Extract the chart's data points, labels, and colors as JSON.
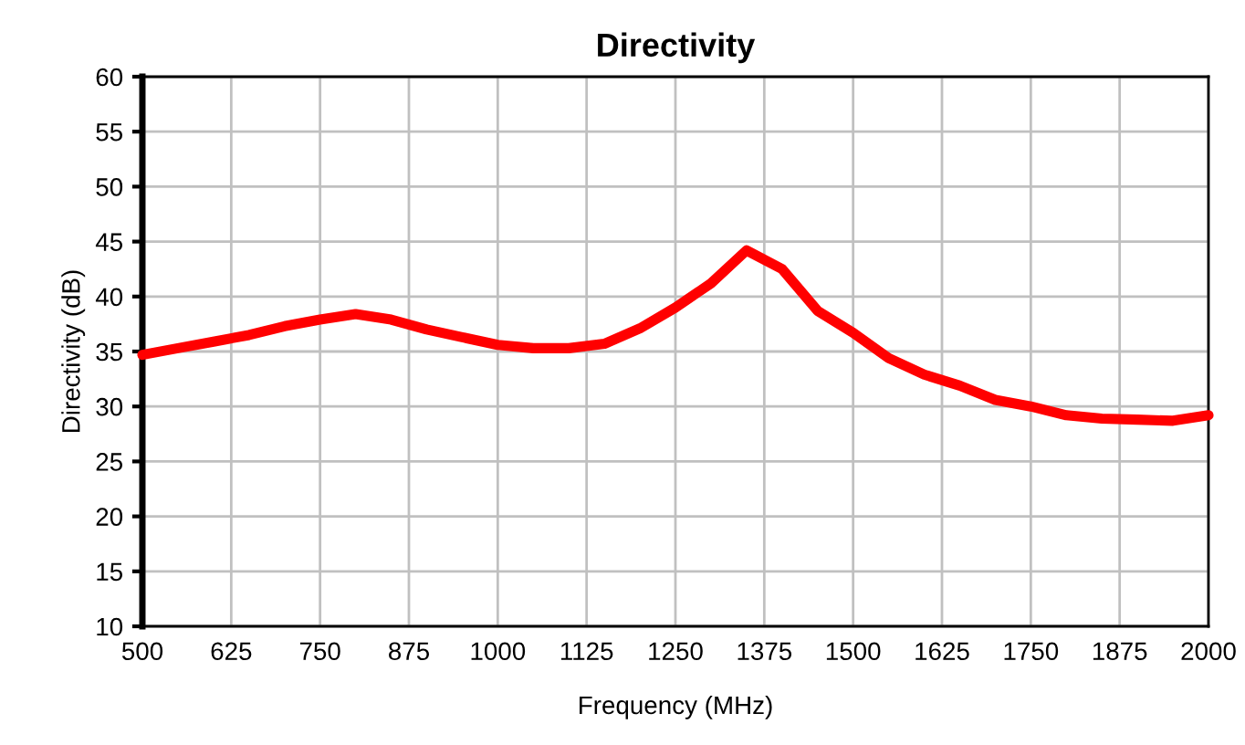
{
  "chart_data": {
    "type": "line",
    "title": "Directivity",
    "xlabel": "Frequency (MHz)",
    "ylabel": "Directivity (dB)",
    "x": [
      500,
      550,
      600,
      650,
      700,
      750,
      800,
      850,
      900,
      950,
      1000,
      1050,
      1100,
      1150,
      1200,
      1250,
      1300,
      1350,
      1400,
      1450,
      1500,
      1550,
      1600,
      1650,
      1700,
      1750,
      1800,
      1850,
      1900,
      1950,
      2000
    ],
    "series": [
      {
        "color": "#ff0000",
        "values": [
          34.7,
          35.3,
          35.9,
          36.5,
          37.3,
          37.9,
          38.4,
          37.9,
          37.0,
          36.3,
          35.6,
          35.3,
          35.3,
          35.7,
          37.1,
          39.0,
          41.2,
          44.2,
          42.5,
          38.7,
          36.7,
          34.4,
          32.9,
          31.9,
          30.6,
          30.0,
          29.2,
          28.9,
          28.8,
          28.7,
          29.2
        ]
      }
    ],
    "xlim": [
      500,
      2000
    ],
    "xticks": [
      500,
      625,
      750,
      875,
      1000,
      1125,
      1250,
      1375,
      1500,
      1625,
      1750,
      1875,
      2000
    ],
    "ylim": [
      10,
      60
    ],
    "yticks": [
      10,
      15,
      20,
      25,
      30,
      35,
      40,
      45,
      50,
      55,
      60
    ],
    "grid": true,
    "marker": "none",
    "line_style": "solid"
  }
}
